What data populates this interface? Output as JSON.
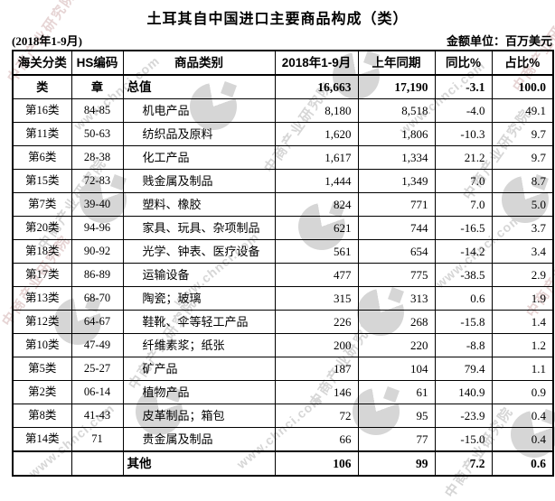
{
  "title": "土耳其自中国进口主要商品构成（类）",
  "period": "(2018年1-9月)",
  "unit_label": "金额单位：百万美元",
  "table": {
    "headers": [
      "海关分类",
      "HS编码",
      "商品类别",
      "2018年1-9月",
      "上年同期",
      "同比%",
      "占比%"
    ],
    "total_row": [
      "类",
      "章",
      "总值",
      "16,663",
      "17,190",
      "-3.1",
      "100.0"
    ],
    "rows": [
      [
        "第16类",
        "84-85",
        "机电产品",
        "8,180",
        "8,518",
        "-4.0",
        "49.1"
      ],
      [
        "第11类",
        "50-63",
        "纺织品及原料",
        "1,620",
        "1,806",
        "-10.3",
        "9.7"
      ],
      [
        "第6类",
        "28-38",
        "化工产品",
        "1,617",
        "1,334",
        "21.2",
        "9.7"
      ],
      [
        "第15类",
        "72-83",
        "贱金属及制品",
        "1,444",
        "1,349",
        "7.0",
        "8.7"
      ],
      [
        "第7类",
        "39-40",
        "塑料、橡胶",
        "824",
        "771",
        "7.0",
        "5.0"
      ],
      [
        "第20类",
        "94-96",
        "家具、玩具、杂项制品",
        "621",
        "744",
        "-16.5",
        "3.7"
      ],
      [
        "第18类",
        "90-92",
        "光学、钟表、医疗设备",
        "561",
        "654",
        "-14.2",
        "3.4"
      ],
      [
        "第17类",
        "86-89",
        "运输设备",
        "477",
        "775",
        "-38.5",
        "2.9"
      ],
      [
        "第13类",
        "68-70",
        "陶瓷；玻璃",
        "315",
        "313",
        "0.6",
        "1.9"
      ],
      [
        "第12类",
        "64-67",
        "鞋靴、伞等轻工产品",
        "226",
        "268",
        "-15.8",
        "1.4"
      ],
      [
        "第10类",
        "47-49",
        "纤维素浆；纸张",
        "200",
        "220",
        "-8.8",
        "1.2"
      ],
      [
        "第5类",
        "25-27",
        "矿产品",
        "187",
        "104",
        "79.4",
        "1.1"
      ],
      [
        "第2类",
        "06-14",
        "植物产品",
        "146",
        "61",
        "140.9",
        "0.9"
      ],
      [
        "第8类",
        "41-43",
        "皮革制品；箱包",
        "72",
        "95",
        "-23.9",
        "0.4"
      ],
      [
        "第14类",
        "71",
        "贵金属及制品",
        "66",
        "77",
        "-15.0",
        "0.4"
      ]
    ],
    "other_row": [
      "",
      "",
      "其他",
      "106",
      "99",
      "7.2",
      "0.6"
    ]
  },
  "watermark": {
    "brand_text": "中商产业研究院",
    "site_text": "www.chnci.com",
    "color_gray": "#d6d6d6",
    "color_pink": "#e6d4d4"
  }
}
